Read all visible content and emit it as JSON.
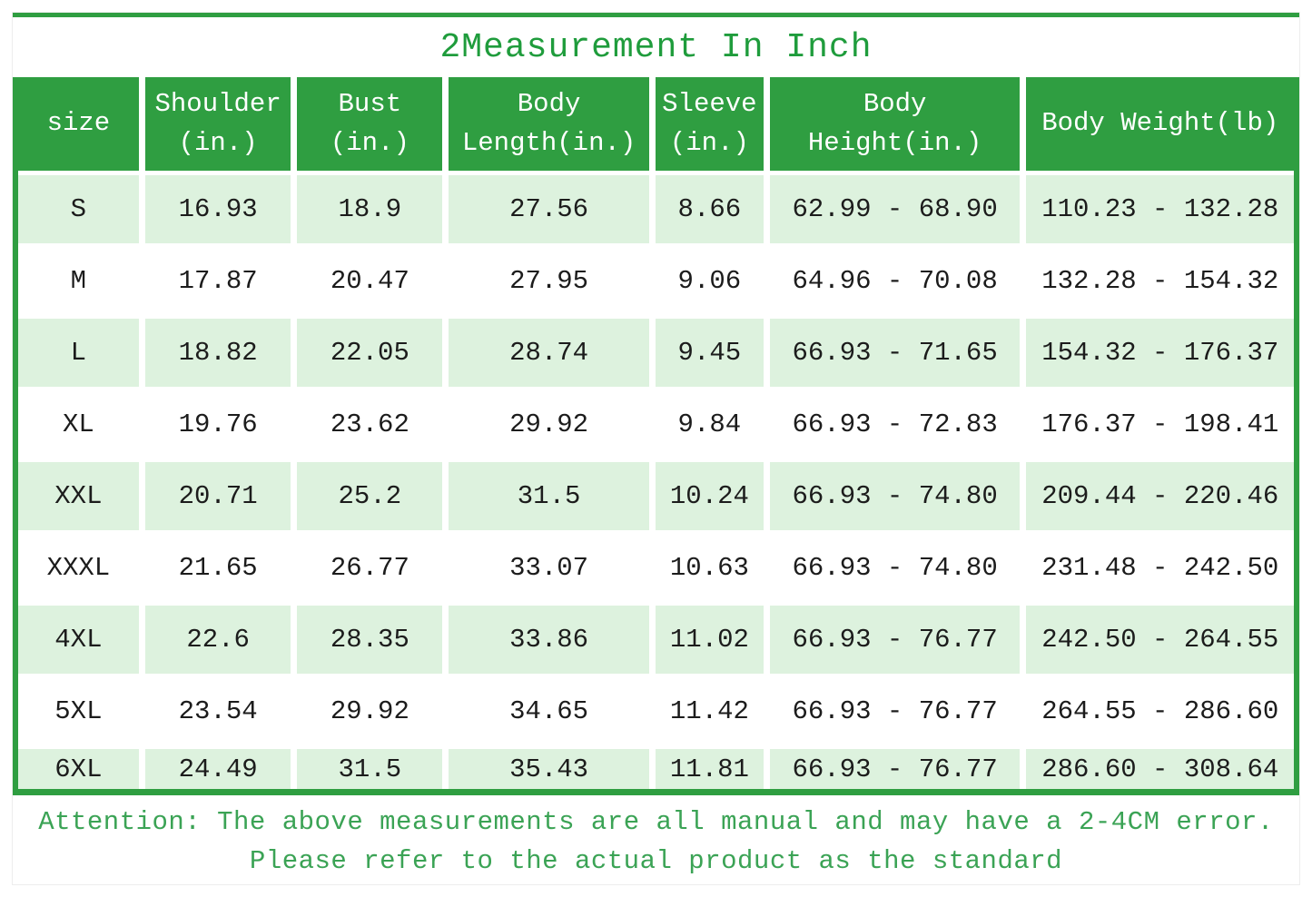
{
  "page": {
    "title": "2Measurement In Inch",
    "footer_line1": "Attention: The above measurements are all manual and may have a 2-4CM error.",
    "footer_line2": "Please refer to the actual product as the standard"
  },
  "colors": {
    "header_green": "#2f9e41",
    "row_tint_green": "#ddf2de",
    "title_text_green": "#1f9c3c",
    "footer_text_green": "#3ba355",
    "cell_text": "#1c1c1c"
  },
  "table": {
    "headers": [
      "size",
      "Shoulder\n(in.)",
      "Bust\n(in.)",
      "Body\nLength(in.)",
      "Sleeve\n(in.)",
      "Body\nHeight(in.)",
      "Body Weight(lb)"
    ],
    "rows": [
      {
        "cells": [
          "S",
          "16.93",
          "18.9",
          "27.56",
          "8.66",
          "62.99 - 68.90",
          "110.23 - 132.28"
        ]
      },
      {
        "cells": [
          "M",
          "17.87",
          "20.47",
          "27.95",
          "9.06",
          "64.96 - 70.08",
          "132.28 - 154.32"
        ]
      },
      {
        "cells": [
          "L",
          "18.82",
          "22.05",
          "28.74",
          "9.45",
          "66.93 - 71.65",
          "154.32 - 176.37"
        ]
      },
      {
        "cells": [
          "XL",
          "19.76",
          "23.62",
          "29.92",
          "9.84",
          "66.93 - 72.83",
          "176.37 - 198.41"
        ]
      },
      {
        "cells": [
          "XXL",
          "20.71",
          "25.2",
          "31.5",
          "10.24",
          "66.93 - 74.80",
          "209.44 - 220.46"
        ]
      },
      {
        "cells": [
          "XXXL",
          "21.65",
          "26.77",
          "33.07",
          "10.63",
          "66.93 - 74.80",
          "231.48 - 242.50"
        ]
      },
      {
        "cells": [
          "4XL",
          "22.6",
          "28.35",
          "33.86",
          "11.02",
          "66.93 - 76.77",
          "242.50 - 264.55"
        ]
      },
      {
        "cells": [
          "5XL",
          "23.54",
          "29.92",
          "34.65",
          "11.42",
          "66.93 - 76.77",
          "264.55 - 286.60"
        ]
      },
      {
        "cells": [
          "6XL",
          "24.49",
          "31.5",
          "35.43",
          "11.81",
          "66.93 - 76.77",
          "286.60 - 308.64"
        ]
      }
    ]
  }
}
